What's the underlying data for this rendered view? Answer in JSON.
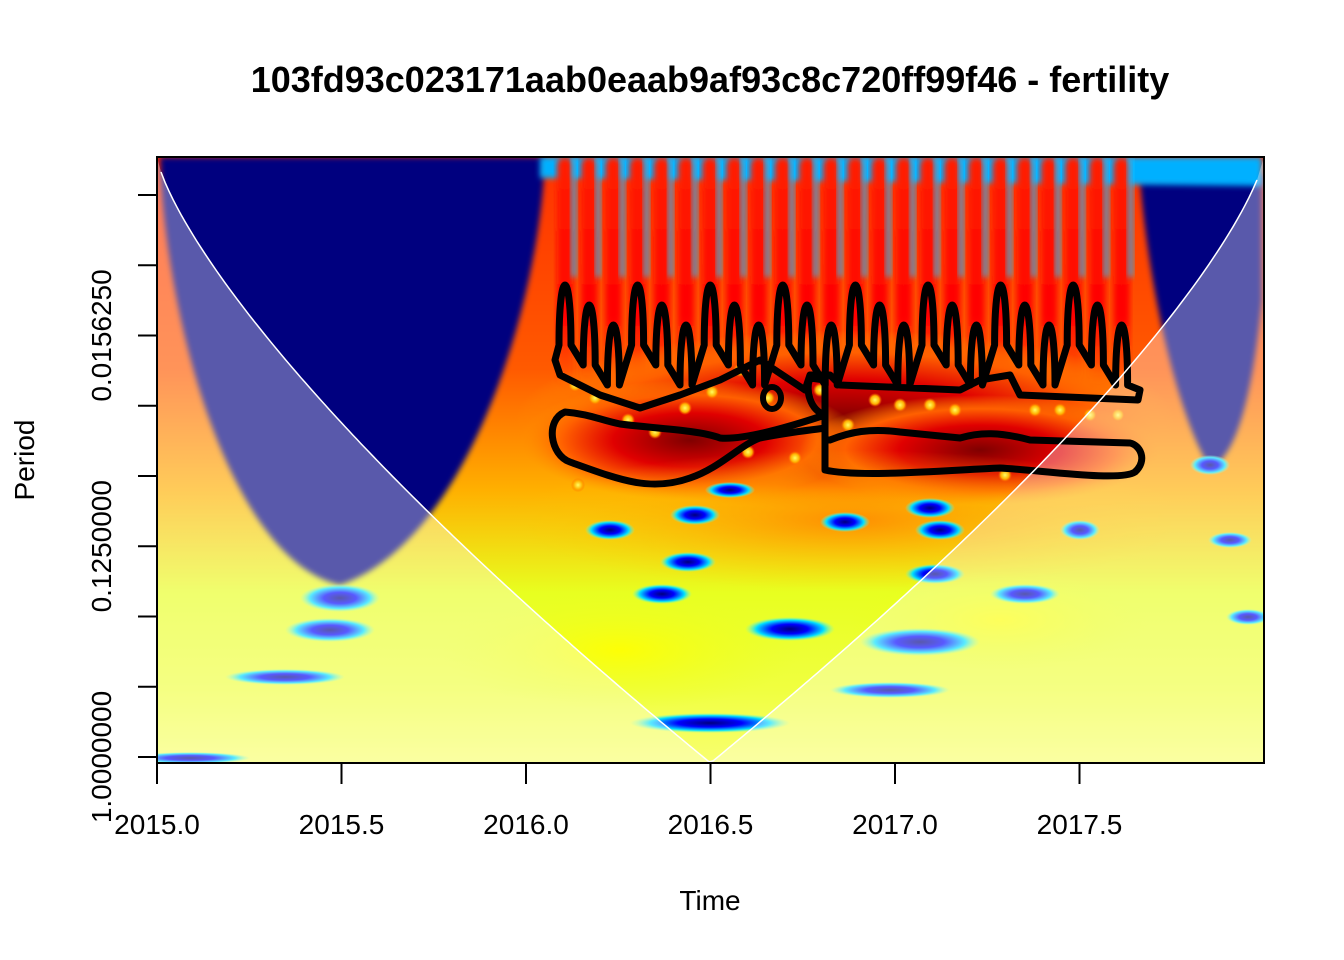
{
  "chart_data": {
    "type": "heatmap",
    "title": "103fd93c023171aab0eaab9af93c8c720ff99f46 - fertility",
    "xlabel": "Time",
    "ylabel": "Period",
    "xlim": [
      2015.0,
      2018.0
    ],
    "x_ticks": [
      {
        "value": 2015.0,
        "label": "2015.0"
      },
      {
        "value": 2015.5,
        "label": "2015.5"
      },
      {
        "value": 2016.0,
        "label": "2016.0"
      },
      {
        "value": 2016.5,
        "label": "2016.5"
      },
      {
        "value": 2017.0,
        "label": "2017.0"
      },
      {
        "value": 2017.5,
        "label": "2017.5"
      }
    ],
    "y_scale": "log2",
    "y_reversed": true,
    "y_ticks": [
      {
        "value": 0.00390625,
        "label": ""
      },
      {
        "value": 0.0078125,
        "label": ""
      },
      {
        "value": 0.015625,
        "label": "0.0156250"
      },
      {
        "value": 0.03125,
        "label": ""
      },
      {
        "value": 0.0625,
        "label": ""
      },
      {
        "value": 0.125,
        "label": "0.1250000"
      },
      {
        "value": 0.25,
        "label": ""
      },
      {
        "value": 0.5,
        "label": ""
      },
      {
        "value": 1.0,
        "label": "1.0000000"
      }
    ],
    "colormap": [
      "#00007f",
      "#0000ff",
      "#00ffff",
      "#ffff00",
      "#ff7f00",
      "#ff0000",
      "#7f0000"
    ],
    "contour_color": "#000000",
    "cone_of_influence_color": "#ffffff",
    "grid": false,
    "legend": "none"
  }
}
